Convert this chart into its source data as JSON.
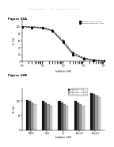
{
  "header": "Patent Application Publication    Apr. 5, 2011    Sheet 44 of 124    US 2011/0082046 A1",
  "fig16A_label": "Figure 16A",
  "fig16B_label": "Figure 16B",
  "fig16A": {
    "legend": [
      "Inhibitor 1 (IC50=100 nM)",
      "Bioluminescence IC50=1 nM"
    ],
    "series1_x": [
      1,
      3,
      10,
      30,
      100,
      300,
      1000,
      3000,
      10000
    ],
    "series1_y": [
      100,
      98,
      96,
      88,
      55,
      20,
      8,
      3,
      1
    ],
    "series2_x": [
      1,
      3,
      10,
      30,
      100,
      300,
      1000,
      3000,
      10000
    ],
    "series2_y": [
      100,
      100,
      98,
      90,
      60,
      25,
      10,
      4,
      2
    ],
    "xlabel": "Inhibitor (nM)",
    "ylabel": "% Ctrl",
    "xlim_log": [
      1,
      10000
    ],
    "ylim": [
      0,
      120
    ],
    "yticks": [
      0,
      20,
      40,
      60,
      80,
      100
    ]
  },
  "fig16B": {
    "categories": [
      "DMSO",
      "Ctrl1",
      "0.1",
      "Basal 1",
      "Basal 2"
    ],
    "series": [
      {
        "label": "Compound 1 ~ 1 nM",
        "color": "#111111",
        "values": [
          105,
          100,
          100,
          100,
          130
        ]
      },
      {
        "label": "Compound 2 ~ 2 nM/5%",
        "color": "#555555",
        "values": [
          100,
          95,
          95,
          95,
          125
        ]
      },
      {
        "label": "Compound 3 ~ 3 nM/5%",
        "color": "#999999",
        "values": [
          95,
          90,
          90,
          90,
          120
        ]
      },
      {
        "label": "Compound 4 ~ 4 nM/5%",
        "color": "#cccccc",
        "values": [
          90,
          85,
          85,
          85,
          115
        ]
      }
    ],
    "xlabel": "Inhibitor (nM)",
    "ylabel": "% Ctrl",
    "ylim": [
      0,
      145
    ],
    "yticks": [
      0,
      50,
      100
    ]
  }
}
